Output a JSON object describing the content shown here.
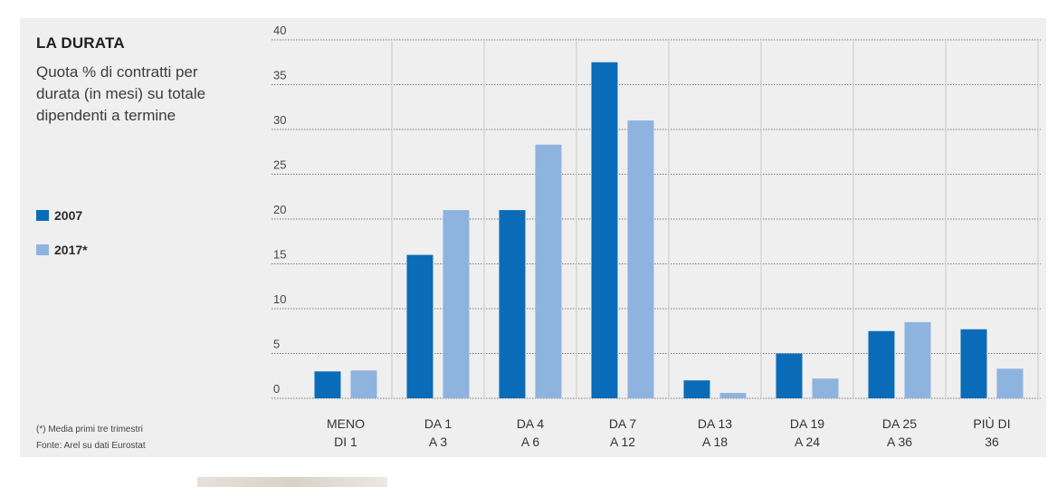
{
  "chart_data": {
    "type": "bar",
    "title": "LA DURATA",
    "subtitle": "Quota % di contratti per durata (in mesi) su totale dipendenti a termine",
    "categories": [
      [
        "MENO",
        "DI 1"
      ],
      [
        "DA 1",
        "A 3"
      ],
      [
        "DA 4",
        "A 6"
      ],
      [
        "DA 7",
        "A 12"
      ],
      [
        "DA 13",
        "A 18"
      ],
      [
        "DA 19",
        "A 24"
      ],
      [
        "DA 25",
        "A 36"
      ],
      [
        "PIÙ DI",
        "36"
      ]
    ],
    "series": [
      {
        "name": "2007",
        "color": "#0a6cb8",
        "values": [
          3.0,
          16.0,
          21.0,
          37.5,
          2.0,
          5.0,
          7.5,
          7.7
        ]
      },
      {
        "name": "2017*",
        "color": "#8fb3df",
        "values": [
          3.1,
          21.0,
          28.3,
          31.0,
          0.6,
          2.2,
          8.5,
          3.3
        ]
      }
    ],
    "ylim": [
      0,
      40
    ],
    "yticks": [
      0,
      5,
      10,
      15,
      20,
      25,
      30,
      35,
      40
    ],
    "grid": true,
    "legend_position": "left"
  },
  "notes": {
    "footnote": "(*) Media primi tre trimestri",
    "source": "Fonte: Arel su dati Eurostat"
  }
}
